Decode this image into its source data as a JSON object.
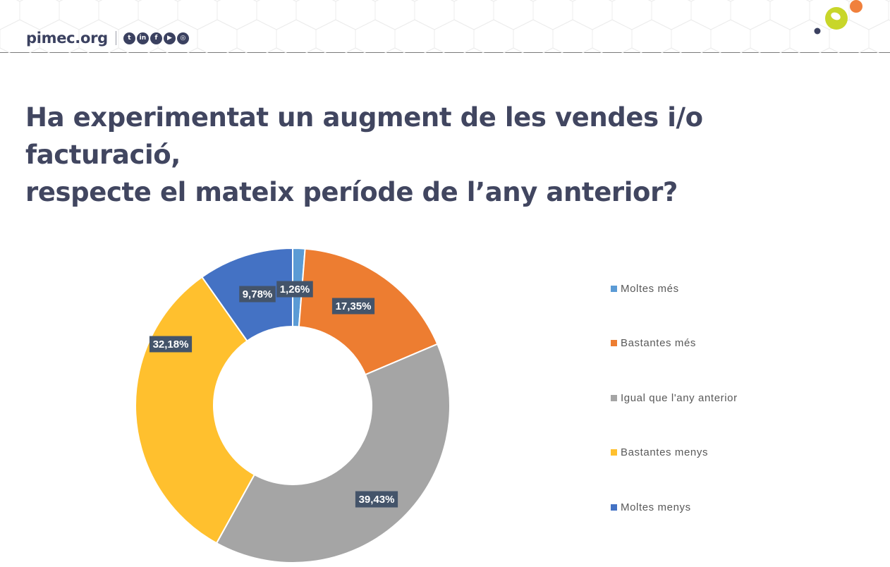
{
  "header": {
    "brand": "pimec.org",
    "social_icons": [
      {
        "name": "twitter-icon",
        "glyph": "t"
      },
      {
        "name": "linkedin-icon",
        "glyph": "in"
      },
      {
        "name": "facebook-icon",
        "glyph": "f"
      },
      {
        "name": "youtube-icon",
        "glyph": "▶"
      },
      {
        "name": "instagram-icon",
        "glyph": "◎"
      }
    ],
    "colors": {
      "brand": "#3b4160",
      "logo_green": "#c8d62a",
      "logo_orange": "#f0803c"
    }
  },
  "title_lines": [
    "Ha experimentat un augment de les vendes i/o facturació,",
    "respecte el mateix període de l’any anterior?"
  ],
  "chart_data": {
    "type": "pie",
    "variant": "doughnut",
    "categories": [
      "Moltes més",
      "Bastantes més",
      "Igual que l'any anterior",
      "Bastantes menys",
      "Moltes menys"
    ],
    "legend_labels": [
      "Moltes més",
      "Bastantes més",
      "Igual que l'any anterior",
      "Bastantes menys",
      "Moltes menys"
    ],
    "values": [
      1.26,
      17.35,
      39.43,
      32.18,
      9.78
    ],
    "data_labels": [
      "1,26%",
      "17,35%",
      "39,43%",
      "32,18%",
      "9,78%"
    ],
    "colors": [
      "#5b9bd5",
      "#ed7d31",
      "#a5a5a5",
      "#ffc02e",
      "#4472c4"
    ],
    "label_background": "#44546a",
    "legend_position": "right"
  }
}
